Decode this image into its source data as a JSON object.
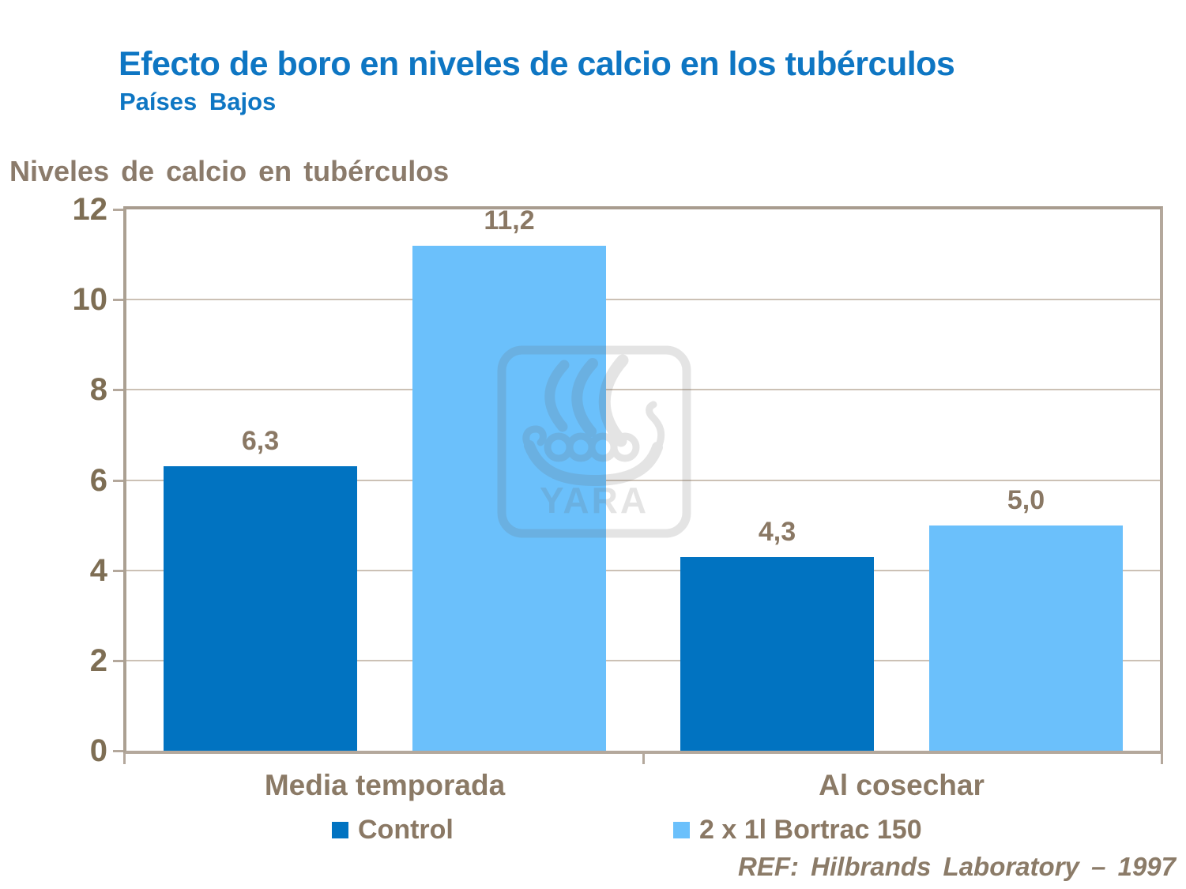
{
  "slide": {
    "title": "Efecto de boro en niveles de calcio en los tubérculos",
    "subtitle": "Países Bajos",
    "axis_heading": "Niveles de calcio en tubérculos",
    "reference": "REF: Hilbrands Laboratory – 1997",
    "watermark_text": "YARA"
  },
  "colors": {
    "title_blue": "#0e76c3",
    "text_brown": "#8a7864",
    "axis_number_brown": "#7e6e54",
    "control_bar_blue": "#0173c1",
    "bortrac_bar_blue": "#6bc0fb",
    "plot_border_tan": "#b4a89c",
    "gridline_tan": "#ccc1b5",
    "watermark_gray": "#e2e2e2"
  },
  "chart_data": {
    "type": "bar",
    "title": "Niveles de calcio en tubérculos",
    "categories": [
      "Media temporada",
      "Al cosechar"
    ],
    "series": [
      {
        "name": "Control",
        "color": "#0173c1",
        "values": [
          6.3,
          4.3
        ],
        "labels": [
          "6,3",
          "4,3"
        ]
      },
      {
        "name": "2 x 1l Bortrac 150",
        "color": "#6bc0fb",
        "values": [
          11.2,
          5.0
        ],
        "labels": [
          "11,2",
          "5,0"
        ]
      }
    ],
    "ylim": [
      0,
      12
    ],
    "yticks": [
      0,
      2,
      4,
      6,
      8,
      10,
      12
    ],
    "grid": true,
    "legend_position": "bottom",
    "decimal_separator": ","
  }
}
